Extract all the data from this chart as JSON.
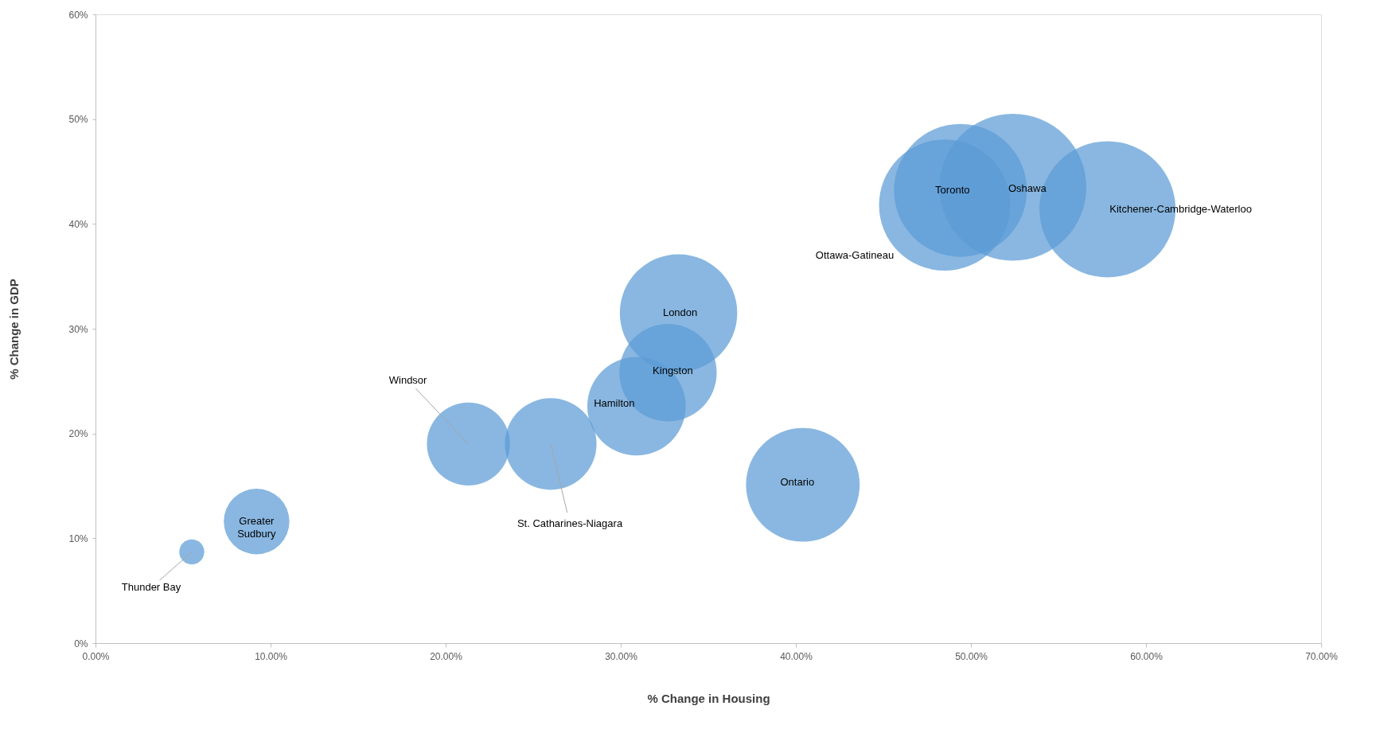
{
  "chart_data": {
    "type": "bubble",
    "xlabel": "% Change in Housing",
    "ylabel": "% Change in GDP",
    "x": [
      5.5,
      9.2,
      21.3,
      26.0,
      30.9,
      32.7,
      33.3,
      40.4,
      48.5,
      49.4,
      52.4,
      57.8
    ],
    "series": [
      {
        "color": "#5b9bd5",
        "values": [
          8.7,
          11.6,
          19.0,
          19.0,
          22.6,
          25.8,
          31.5,
          15.1,
          41.8,
          43.2,
          43.5,
          41.4
        ],
        "sizes": [
          0.029,
          0.2,
          0.32,
          0.39,
          0.45,
          0.44,
          0.64,
          0.6,
          0.8,
          0.82,
          1,
          0.86
        ]
      }
    ],
    "annotations": [
      {
        "text": "Thunder Bay",
        "x": 5.5,
        "y": 8.7
      },
      {
        "text": "Greater\nSudbury",
        "x": 9.2,
        "y": 11.6
      },
      {
        "text": "Windsor",
        "x": 21.3,
        "y": 19.0
      },
      {
        "text": "St. Catharines-Niagara",
        "x": 26.0,
        "y": 19.0
      },
      {
        "text": "Hamilton",
        "x": 30.9,
        "y": 22.6
      },
      {
        "text": "Kingston",
        "x": 32.7,
        "y": 25.8
      },
      {
        "text": "London",
        "x": 33.3,
        "y": 31.5
      },
      {
        "text": "Ontario",
        "x": 40.4,
        "y": 15.1
      },
      "Ottawa-Gatineau",
      {
        "text": "Toronto",
        "x": 49.4,
        "y": 43.2
      },
      {
        "text": "Oshawa",
        "x": 52.4,
        "y": 43.5
      },
      {
        "text": "Kitchener-Cambridge-Waterloo",
        "x": 57.8,
        "y": 41.4
      }
    ],
    "xlim": [
      0,
      70
    ],
    "xticks": [
      {
        "value": 0,
        "label": "0.00%"
      },
      {
        "value": 10,
        "label": "10.00%"
      },
      {
        "value": 20,
        "label": "20.00%"
      },
      {
        "value": 30,
        "label": "30.00%"
      },
      {
        "value": 40,
        "label": "40.00%"
      },
      {
        "value": 50,
        "label": "50.00%"
      },
      {
        "value": 60,
        "label": "60.00%"
      },
      {
        "value": 70,
        "label": "70.00%"
      }
    ],
    "ylim": [
      0,
      60
    ],
    "yticks": [
      {
        "value": 0,
        "label": "0%"
      },
      {
        "value": 10,
        "label": "10%"
      },
      {
        "value": 20,
        "label": "20%"
      },
      {
        "value": 30,
        "label": "30%"
      },
      {
        "value": 40,
        "label": "40%"
      },
      {
        "value": 50,
        "label": "50%"
      },
      {
        "value": 60,
        "label": "60%"
      }
    ],
    "grid": false,
    "legend": false
  }
}
